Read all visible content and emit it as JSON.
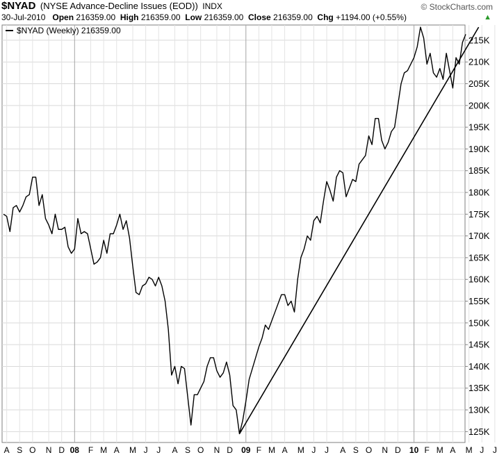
{
  "header": {
    "ticker": "$NYAD",
    "full_name": "(NYSE Advance-Decline Issues (EOD))",
    "exchange": "INDX",
    "brand": "© StockCharts.com",
    "date": "30-Jul-2010",
    "open_label": "Open",
    "open_value": "216359.00",
    "high_label": "High",
    "high_value": "216359.00",
    "low_label": "Low",
    "low_value": "216359.00",
    "close_label": "Close",
    "close_value": "216359.00",
    "chg_label": "Chg",
    "chg_value": "+1194.00 (+0.55%)",
    "up_arrow_icon": "triangle-up-icon"
  },
  "legend": {
    "label": "$NYAD (Weekly) 216359.00"
  },
  "chart_data": {
    "type": "line",
    "title": "",
    "xlabel": "",
    "ylabel": "",
    "ylim": [
      122500,
      218500
    ],
    "y_ticks": [
      125000,
      130000,
      135000,
      140000,
      145000,
      150000,
      155000,
      160000,
      165000,
      170000,
      175000,
      180000,
      185000,
      190000,
      195000,
      200000,
      205000,
      210000,
      215000
    ],
    "y_tick_labels": [
      "125K",
      "130K",
      "135K",
      "140K",
      "145K",
      "150K",
      "155K",
      "160K",
      "165K",
      "170K",
      "175K",
      "180K",
      "185K",
      "190K",
      "195K",
      "200K",
      "205K",
      "210K",
      "215K"
    ],
    "x_ticks": [
      {
        "label": "A",
        "idx": 1,
        "bold": false
      },
      {
        "label": "S",
        "idx": 5,
        "bold": false
      },
      {
        "label": "O",
        "idx": 9,
        "bold": false
      },
      {
        "label": "N",
        "idx": 14,
        "bold": false
      },
      {
        "label": "D",
        "idx": 18,
        "bold": false
      },
      {
        "label": "08",
        "idx": 22,
        "bold": true
      },
      {
        "label": "F",
        "idx": 27,
        "bold": false
      },
      {
        "label": "M",
        "idx": 31,
        "bold": false
      },
      {
        "label": "A",
        "idx": 35,
        "bold": false
      },
      {
        "label": "M",
        "idx": 40,
        "bold": false
      },
      {
        "label": "J",
        "idx": 44,
        "bold": false
      },
      {
        "label": "J",
        "idx": 48,
        "bold": false
      },
      {
        "label": "A",
        "idx": 53,
        "bold": false
      },
      {
        "label": "S",
        "idx": 57,
        "bold": false
      },
      {
        "label": "O",
        "idx": 61,
        "bold": false
      },
      {
        "label": "N",
        "idx": 66,
        "bold": false
      },
      {
        "label": "D",
        "idx": 70,
        "bold": false
      },
      {
        "label": "09",
        "idx": 75,
        "bold": true
      },
      {
        "label": "F",
        "idx": 79,
        "bold": false
      },
      {
        "label": "M",
        "idx": 83,
        "bold": false
      },
      {
        "label": "A",
        "idx": 87,
        "bold": false
      },
      {
        "label": "M",
        "idx": 92,
        "bold": false
      },
      {
        "label": "J",
        "idx": 96,
        "bold": false
      },
      {
        "label": "J",
        "idx": 100,
        "bold": false
      },
      {
        "label": "A",
        "idx": 105,
        "bold": false
      },
      {
        "label": "S",
        "idx": 109,
        "bold": false
      },
      {
        "label": "O",
        "idx": 113,
        "bold": false
      },
      {
        "label": "N",
        "idx": 118,
        "bold": false
      },
      {
        "label": "D",
        "idx": 122,
        "bold": false
      },
      {
        "label": "10",
        "idx": 127,
        "bold": true
      },
      {
        "label": "F",
        "idx": 131,
        "bold": false
      },
      {
        "label": "M",
        "idx": 135,
        "bold": false
      },
      {
        "label": "A",
        "idx": 139,
        "bold": false
      },
      {
        "label": "M",
        "idx": 144,
        "bold": false
      },
      {
        "label": "J",
        "idx": 148,
        "bold": false
      },
      {
        "label": "J",
        "idx": 152,
        "bold": false
      }
    ],
    "grid": true,
    "legend_position": "top-left",
    "series": [
      {
        "name": "$NYAD (Weekly) 216359.00",
        "color": "#000000",
        "values": [
          175000,
          174500,
          171000,
          176500,
          177000,
          175500,
          177000,
          179000,
          179500,
          183500,
          183500,
          177000,
          179500,
          174000,
          172500,
          170500,
          175000,
          171500,
          171500,
          172000,
          167500,
          166000,
          167000,
          174000,
          170500,
          171000,
          170500,
          167000,
          163500,
          164000,
          165000,
          169000,
          166000,
          170500,
          170500,
          172500,
          175000,
          171500,
          173500,
          169500,
          163000,
          157000,
          156500,
          158500,
          159000,
          160500,
          160000,
          158500,
          160500,
          158500,
          155000,
          148500,
          138000,
          140000,
          136000,
          140000,
          139500,
          133000,
          126500,
          133500,
          133500,
          135000,
          136500,
          140000,
          142000,
          142000,
          139000,
          137500,
          138500,
          141000,
          138000,
          131000,
          130000,
          124500,
          127500,
          132000,
          137000,
          139500,
          142000,
          144500,
          146500,
          149500,
          148500,
          150500,
          152500,
          154500,
          156500,
          156500,
          154000,
          155000,
          152500,
          160000,
          165000,
          167000,
          170000,
          169000,
          173500,
          174500,
          173000,
          178000,
          182500,
          180500,
          178000,
          183500,
          185000,
          184500,
          179000,
          181000,
          183000,
          182500,
          186500,
          187500,
          188500,
          193000,
          191000,
          197000,
          197000,
          192000,
          190000,
          191500,
          194000,
          195000,
          200000,
          205000,
          207500,
          208000,
          209500,
          211000,
          213500,
          218000,
          215500,
          209500,
          212000,
          207500,
          206500,
          208500,
          206000,
          212000,
          208000,
          204000,
          211000,
          209500,
          214500,
          216359
        ],
        "trendline": {
          "from_idx": 73,
          "from_value": 124500,
          "to_idx": 147,
          "to_value": 218000
        }
      }
    ]
  }
}
